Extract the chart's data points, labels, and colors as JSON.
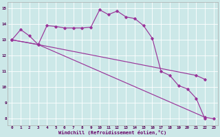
{
  "background_color": "#cce8e8",
  "line_color": "#993399",
  "grid_color": "#ffffff",
  "xlabel": "Windchill (Refroidissement éolien,°C)",
  "xlabel_color": "#660066",
  "tick_color": "#550055",
  "xlim_min": -0.5,
  "xlim_max": 23.5,
  "ylim_min": 7.6,
  "ylim_max": 15.4,
  "yticks": [
    8,
    9,
    10,
    11,
    12,
    13,
    14,
    15
  ],
  "xticks": [
    0,
    1,
    2,
    3,
    4,
    5,
    6,
    7,
    8,
    9,
    10,
    11,
    12,
    13,
    14,
    15,
    16,
    17,
    18,
    19,
    20,
    21,
    22,
    23
  ],
  "curve1_x": [
    0,
    1,
    2,
    3,
    4,
    5,
    6,
    7,
    8,
    9,
    10,
    11,
    12,
    13,
    14,
    15,
    16,
    17,
    18,
    19,
    20,
    21,
    22
  ],
  "curve1_y": [
    13.0,
    13.65,
    13.25,
    12.7,
    13.9,
    13.85,
    13.75,
    13.75,
    13.75,
    13.8,
    14.9,
    14.6,
    14.82,
    14.45,
    14.35,
    13.9,
    13.1,
    11.0,
    10.75,
    10.1,
    9.9,
    9.3,
    8.0
  ],
  "line2_x": [
    0,
    3,
    22,
    23
  ],
  "line2_y": [
    13.0,
    12.7,
    8.1,
    8.0
  ],
  "line3_x": [
    0,
    3,
    21,
    22
  ],
  "line3_y": [
    13.0,
    12.7,
    10.75,
    10.5
  ]
}
